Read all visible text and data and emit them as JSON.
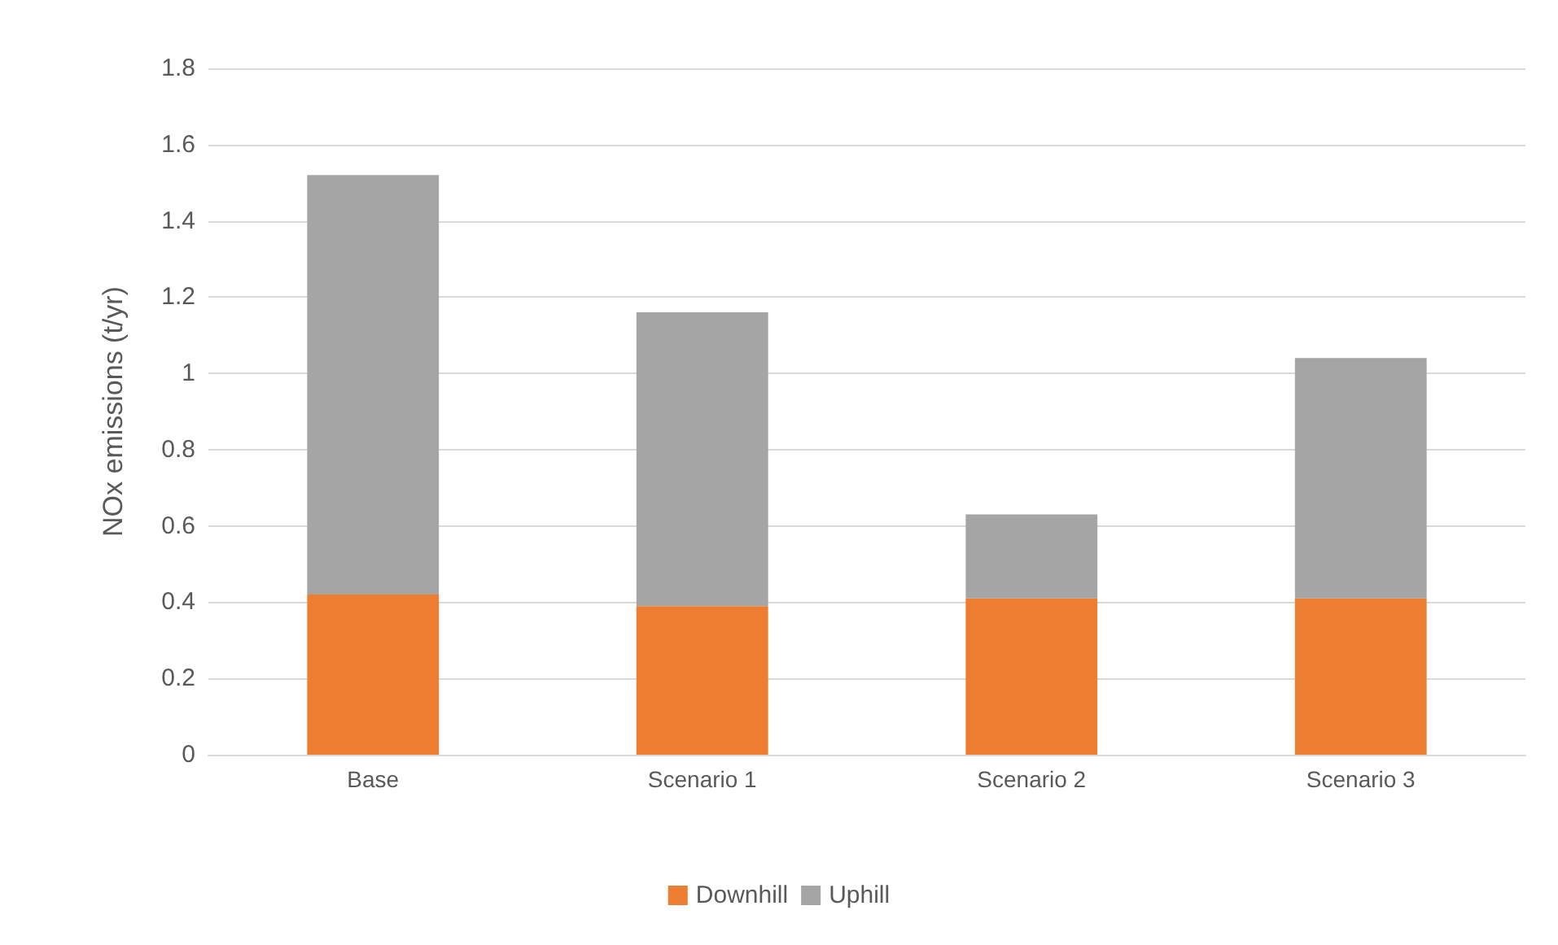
{
  "chart_data": {
    "type": "bar",
    "stacked": true,
    "ylabel": "NOx emissions (t/yr)",
    "categories": [
      "Base",
      "Scenario 1",
      "Scenario 2",
      "Scenario 3"
    ],
    "series": [
      {
        "name": "Downhill",
        "color": "#ed7d31",
        "values": [
          0.42,
          0.39,
          0.41,
          0.41
        ]
      },
      {
        "name": "Uphill",
        "color": "#a5a5a5",
        "values": [
          1.1,
          0.77,
          0.22,
          0.63
        ]
      }
    ],
    "ylim": [
      0,
      1.8
    ],
    "yticks": [
      0,
      0.2,
      0.4,
      0.6,
      0.8,
      1,
      1.2,
      1.4,
      1.6,
      1.8
    ],
    "grid": "y",
    "legend": "bottom"
  }
}
